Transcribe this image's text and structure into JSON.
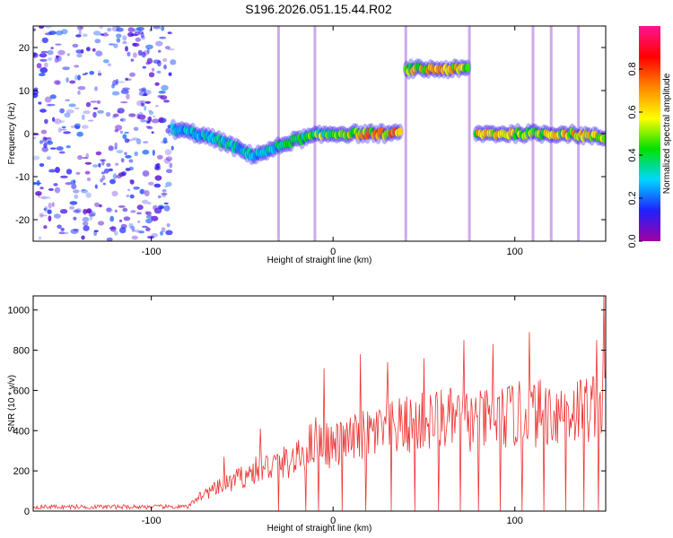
{
  "page": {
    "title": "S196.2026.051.15.44.R02"
  },
  "colors": {
    "background": "#ffffff",
    "snr_line": "#ee3333",
    "axis": "#000000",
    "colorbar_stops": [
      "#a000a0",
      "#2020ff",
      "#00d8ff",
      "#00e000",
      "#ffff00",
      "#ff8800",
      "#ff0000",
      "#ff1493"
    ]
  },
  "chart_data": [
    {
      "type": "heatmap",
      "title": "S196.2026.051.15.44.R02",
      "xlabel": "Height of straight line (km)",
      "ylabel": "Frequency (Hz)",
      "xlim": [
        -165,
        150
      ],
      "ylim": [
        -25,
        25
      ],
      "xticks": [
        -100,
        0,
        100
      ],
      "yticks": [
        -20,
        -10,
        0,
        10,
        20
      ],
      "colorbar": {
        "label": "Normalized spectral amplitude",
        "range": [
          0,
          1
        ],
        "ticks": [
          "0.0",
          "0.2",
          "0.4",
          "0.6",
          "0.8"
        ]
      },
      "noise_region": {
        "x": [
          -165,
          -88
        ],
        "amplitude": 0.25
      },
      "ridge": [
        {
          "x": -88,
          "freq": 1.0,
          "amp": 0.35
        },
        {
          "x": -75,
          "freq": 0.0,
          "amp": 0.35
        },
        {
          "x": -60,
          "freq": -2.0,
          "amp": 0.4
        },
        {
          "x": -45,
          "freq": -5.0,
          "amp": 0.35
        },
        {
          "x": -35,
          "freq": -4.0,
          "amp": 0.4
        },
        {
          "x": -25,
          "freq": -2.0,
          "amp": 0.45
        },
        {
          "x": -10,
          "freq": -0.5,
          "amp": 0.6
        },
        {
          "x": 0,
          "freq": 0.0,
          "amp": 0.55
        },
        {
          "x": 20,
          "freq": 0.0,
          "amp": 0.8
        },
        {
          "x": 38,
          "freq": 0.0,
          "amp": 0.8
        },
        {
          "x": 40,
          "freq": 15.0,
          "amp": 0.7
        },
        {
          "x": 75,
          "freq": 15.0,
          "amp": 0.75
        },
        {
          "x": 78,
          "freq": 0.0,
          "amp": 0.7
        },
        {
          "x": 130,
          "freq": 0.0,
          "amp": 0.75
        },
        {
          "x": 150,
          "freq": -1.0,
          "amp": 0.6
        }
      ],
      "vertical_streaks_x": [
        -30,
        -10,
        40,
        75,
        110,
        120,
        135
      ]
    },
    {
      "type": "line",
      "xlabel": "Height of straight line (km)",
      "ylabel": "SNR (10 * v/v)",
      "xlim": [
        -165,
        150
      ],
      "ylim": [
        0,
        1070
      ],
      "xticks": [
        -100,
        0,
        100
      ],
      "yticks": [
        0,
        200,
        400,
        600,
        800,
        1000
      ],
      "series": [
        {
          "name": "SNR",
          "envelope_x": [
            -165,
            -80,
            -75,
            -60,
            -40,
            -20,
            -10,
            0,
            20,
            40,
            60,
            80,
            100,
            120,
            140,
            150
          ],
          "envelope_y": [
            20,
            20,
            80,
            150,
            250,
            300,
            420,
            380,
            450,
            500,
            540,
            520,
            560,
            580,
            600,
            650
          ],
          "peaks": [
            {
              "x": -60,
              "y": 270
            },
            {
              "x": -40,
              "y": 410
            },
            {
              "x": -15,
              "y": 620
            },
            {
              "x": -5,
              "y": 710
            },
            {
              "x": 15,
              "y": 780
            },
            {
              "x": 30,
              "y": 740
            },
            {
              "x": 50,
              "y": 760
            },
            {
              "x": 72,
              "y": 850
            },
            {
              "x": 88,
              "y": 830
            },
            {
              "x": 108,
              "y": 890
            },
            {
              "x": 128,
              "y": 860
            },
            {
              "x": 145,
              "y": 850
            },
            {
              "x": 149,
              "y": 1070
            }
          ],
          "dropout_x": [
            -30,
            -15,
            -8,
            5,
            18,
            32,
            45,
            58,
            70,
            80,
            92,
            104,
            116,
            128,
            138,
            146
          ]
        }
      ]
    }
  ]
}
